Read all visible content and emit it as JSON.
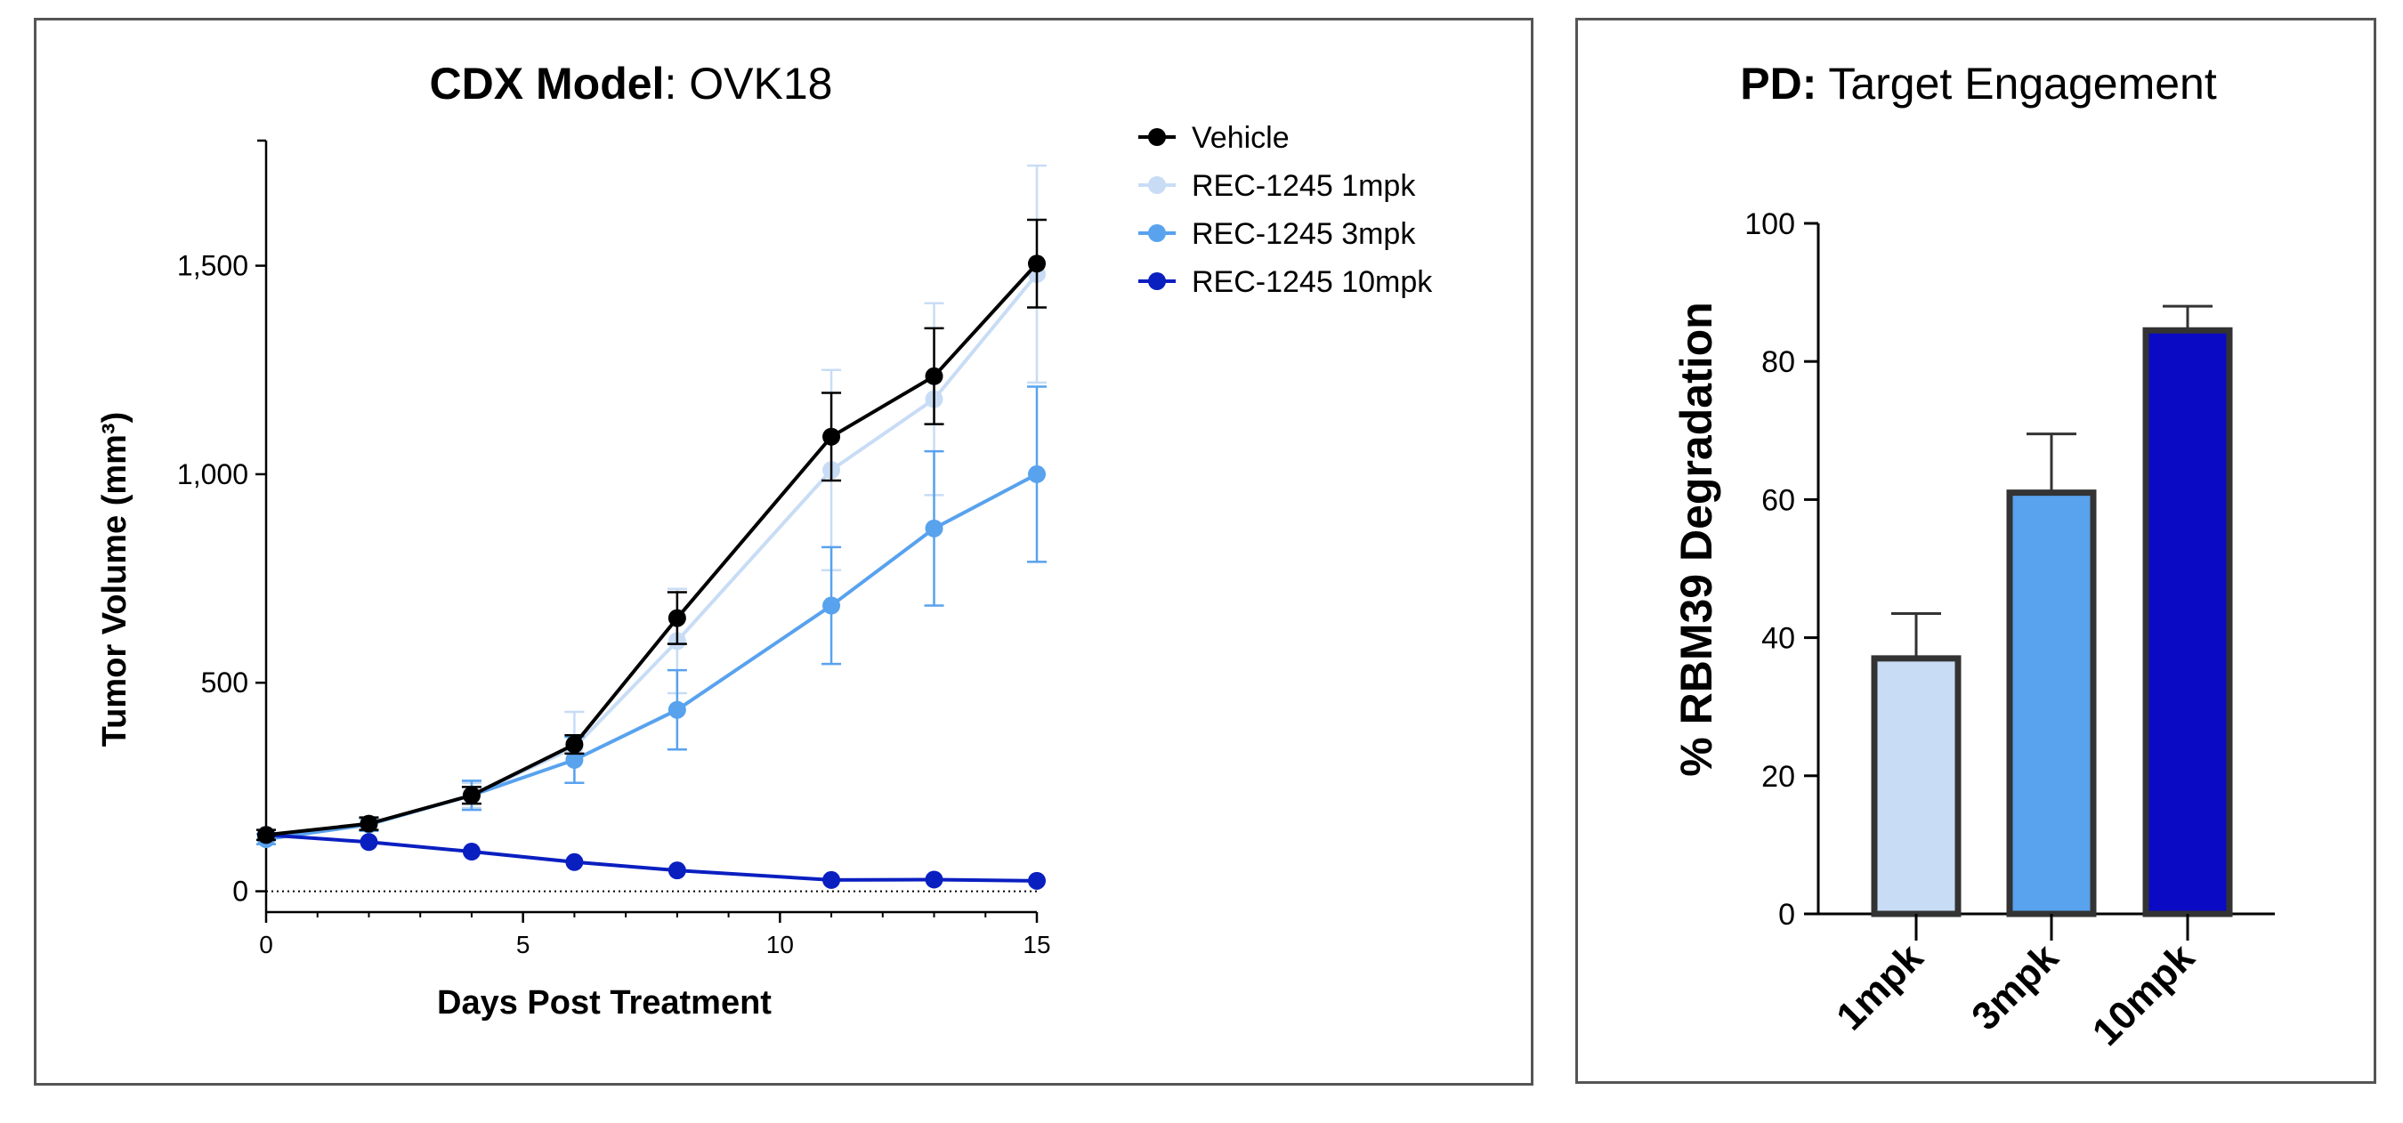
{
  "chart_data": [
    {
      "type": "line",
      "title_bold": "CDX Model",
      "title_rest": ": OVK18",
      "xlabel": "Days Post Treatment",
      "ylabel": "Tumor Volume (mm³)",
      "xlim": [
        0,
        15
      ],
      "ylim": [
        -50,
        1800
      ],
      "xticks": [
        0,
        5,
        10,
        15
      ],
      "xtick_labels": [
        "0",
        "5",
        "10",
        "15"
      ],
      "yticks": [
        0,
        500,
        1000,
        1500
      ],
      "ytick_labels": [
        "0",
        "500",
        "1,000",
        "1,500"
      ],
      "x": [
        0,
        2,
        4,
        6,
        8,
        11,
        13,
        15
      ],
      "baseline": 0,
      "legend_position": "top-right",
      "series": [
        {
          "name": "Vehicle",
          "color": "#000000",
          "values": [
            135,
            162,
            230,
            352,
            655,
            1090,
            1235,
            1505
          ],
          "errors": [
            12,
            15,
            20,
            22,
            62,
            105,
            115,
            105
          ]
        },
        {
          "name": "REC-1245 1mpk",
          "color": "#c8dcf5",
          "values": [
            125,
            160,
            230,
            345,
            600,
            1010,
            1180,
            1480
          ],
          "errors": [
            12,
            15,
            30,
            85,
            125,
            240,
            230,
            260
          ]
        },
        {
          "name": "REC-1245 3mpk",
          "color": "#58a2ee",
          "values": [
            125,
            160,
            230,
            315,
            435,
            685,
            870,
            1000
          ],
          "errors": [
            12,
            15,
            35,
            55,
            95,
            140,
            185,
            210
          ]
        },
        {
          "name": "REC-1245 10mpk",
          "color": "#0a1fc0",
          "values": [
            135,
            118,
            95,
            70,
            50,
            27,
            28,
            25
          ],
          "errors": [
            0,
            0,
            0,
            0,
            0,
            0,
            0,
            0
          ]
        }
      ]
    },
    {
      "type": "bar",
      "title_bold": "PD:",
      "title_rest": " Target Engagement",
      "ylabel": "% RBM39 Degradation",
      "ylim": [
        0,
        100
      ],
      "yticks": [
        0,
        20,
        40,
        60,
        80,
        100
      ],
      "ytick_labels": [
        "0",
        "20",
        "40",
        "60",
        "80",
        "100"
      ],
      "categories": [
        "1mpk",
        "3mpk",
        "10mpk"
      ],
      "values": [
        37,
        61,
        84.5
      ],
      "errors": [
        6.5,
        8.5,
        3.5
      ],
      "colors": [
        "#c8dcf5",
        "#58a2ee",
        "#0a0ac4"
      ]
    }
  ]
}
